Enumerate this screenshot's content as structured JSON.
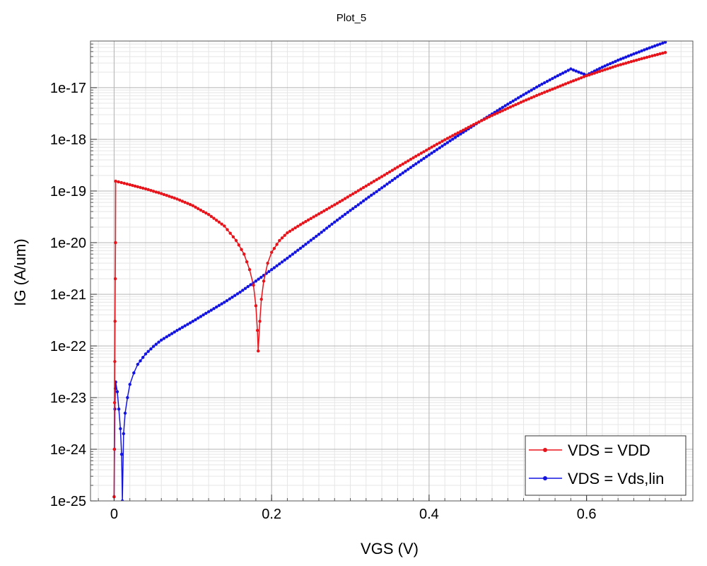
{
  "chart_data": {
    "type": "line",
    "title": "Plot_5",
    "xlabel": "VGS (V)",
    "ylabel": "IG (A/um)",
    "x_scale": "linear",
    "y_scale": "log",
    "xlim": [
      -0.03,
      0.735
    ],
    "ylim": [
      1e-25,
      8e-17
    ],
    "x_ticks": [
      0,
      0.2,
      0.4,
      0.6
    ],
    "x_tick_labels": [
      "0",
      "0.2",
      "0.4",
      "0.6"
    ],
    "y_ticks": [
      1e-25,
      1e-24,
      1e-23,
      1e-22,
      1e-21,
      1e-20,
      1e-19,
      1e-18,
      1e-17
    ],
    "y_tick_labels": [
      "1e-25",
      "1e-24",
      "1e-23",
      "1e-22",
      "1e-21",
      "1e-20",
      "1e-19",
      "1e-18",
      "1e-17"
    ],
    "grid": true,
    "legend_position": "bottom-right",
    "series": [
      {
        "name": "VDS = VDD",
        "color": "#e8141c",
        "marker": "circle",
        "points": [
          [
            0.0,
            1.2e-25
          ],
          [
            0.0003,
            1e-24
          ],
          [
            0.0006,
            8e-24
          ],
          [
            0.0009,
            5e-23
          ],
          [
            0.0012,
            3e-22
          ],
          [
            0.0015,
            2e-21
          ],
          [
            0.0018,
            1e-20
          ],
          [
            0.002,
            1.55e-19
          ],
          [
            0.02,
            1.32e-19
          ],
          [
            0.04,
            1.1e-19
          ],
          [
            0.06,
            8.9e-20
          ],
          [
            0.08,
            7e-20
          ],
          [
            0.1,
            5.2e-20
          ],
          [
            0.12,
            3.5e-20
          ],
          [
            0.14,
            2.1e-20
          ],
          [
            0.155,
            1.1e-20
          ],
          [
            0.165,
            6e-21
          ],
          [
            0.172,
            3e-21
          ],
          [
            0.177,
            1.5e-21
          ],
          [
            0.18,
            6e-22
          ],
          [
            0.182,
            2e-22
          ],
          [
            0.183,
            8e-23
          ],
          [
            0.185,
            3e-22
          ],
          [
            0.187,
            8e-22
          ],
          [
            0.19,
            1.8e-21
          ],
          [
            0.195,
            4e-21
          ],
          [
            0.2,
            6.5e-21
          ],
          [
            0.21,
            1.1e-20
          ],
          [
            0.22,
            1.55e-20
          ],
          [
            0.24,
            2.4e-20
          ],
          [
            0.26,
            3.6e-20
          ],
          [
            0.28,
            5.4e-20
          ],
          [
            0.3,
            8.2e-20
          ],
          [
            0.32,
            1.25e-19
          ],
          [
            0.34,
            1.9e-19
          ],
          [
            0.36,
            2.9e-19
          ],
          [
            0.38,
            4.4e-19
          ],
          [
            0.4,
            6.6e-19
          ],
          [
            0.42,
            9.8e-19
          ],
          [
            0.44,
            1.42e-18
          ],
          [
            0.46,
            2.05e-18
          ],
          [
            0.48,
            2.9e-18
          ],
          [
            0.5,
            4e-18
          ],
          [
            0.52,
            5.5e-18
          ],
          [
            0.54,
            7.4e-18
          ],
          [
            0.56,
            9.8e-18
          ],
          [
            0.58,
            1.3e-17
          ],
          [
            0.6,
            1.7e-17
          ],
          [
            0.62,
            2.15e-17
          ],
          [
            0.64,
            2.7e-17
          ],
          [
            0.66,
            3.3e-17
          ],
          [
            0.68,
            4e-17
          ],
          [
            0.7,
            4.8e-17
          ]
        ]
      },
      {
        "name": "VDS = Vds,lin",
        "color": "#1414e0",
        "marker": "circle",
        "points": [
          [
            0.0,
            1.2e-25
          ],
          [
            0.0005,
            1e-24
          ],
          [
            0.001,
            6e-24
          ],
          [
            0.0015,
            1.5e-23
          ],
          [
            0.002,
            2e-23
          ],
          [
            0.004,
            1.3e-23
          ],
          [
            0.006,
            6e-24
          ],
          [
            0.008,
            2.5e-24
          ],
          [
            0.0095,
            8e-25
          ],
          [
            0.0105,
            1e-25
          ],
          [
            0.012,
            2e-24
          ],
          [
            0.014,
            5e-24
          ],
          [
            0.017,
            1e-23
          ],
          [
            0.02,
            1.8e-23
          ],
          [
            0.025,
            3e-23
          ],
          [
            0.03,
            4.4e-23
          ],
          [
            0.04,
            7e-23
          ],
          [
            0.05,
            9.8e-23
          ],
          [
            0.06,
            1.3e-22
          ],
          [
            0.08,
            2e-22
          ],
          [
            0.1,
            3e-22
          ],
          [
            0.12,
            4.6e-22
          ],
          [
            0.14,
            7e-22
          ],
          [
            0.16,
            1.1e-21
          ],
          [
            0.18,
            1.8e-21
          ],
          [
            0.2,
            3e-21
          ],
          [
            0.22,
            5e-21
          ],
          [
            0.24,
            8.5e-21
          ],
          [
            0.26,
            1.45e-20
          ],
          [
            0.28,
            2.5e-20
          ],
          [
            0.3,
            4.2e-20
          ],
          [
            0.32,
            7e-20
          ],
          [
            0.34,
            1.15e-19
          ],
          [
            0.36,
            1.9e-19
          ],
          [
            0.38,
            3.1e-19
          ],
          [
            0.4,
            5e-19
          ],
          [
            0.42,
            8e-19
          ],
          [
            0.44,
            1.27e-18
          ],
          [
            0.46,
            2e-18
          ],
          [
            0.48,
            3.1e-18
          ],
          [
            0.5,
            4.8e-18
          ],
          [
            0.52,
            7.3e-18
          ],
          [
            0.54,
            1.1e-17
          ],
          [
            0.56,
            1.6e-17
          ],
          [
            0.58,
            2.3e-17
          ],
          [
            0.6,
            1.75e-17
          ],
          [
            0.62,
            2.5e-17
          ],
          [
            0.64,
            3.4e-17
          ],
          [
            0.66,
            4.5e-17
          ],
          [
            0.68,
            5.9e-17
          ],
          [
            0.7,
            7.6e-17
          ]
        ]
      }
    ]
  }
}
